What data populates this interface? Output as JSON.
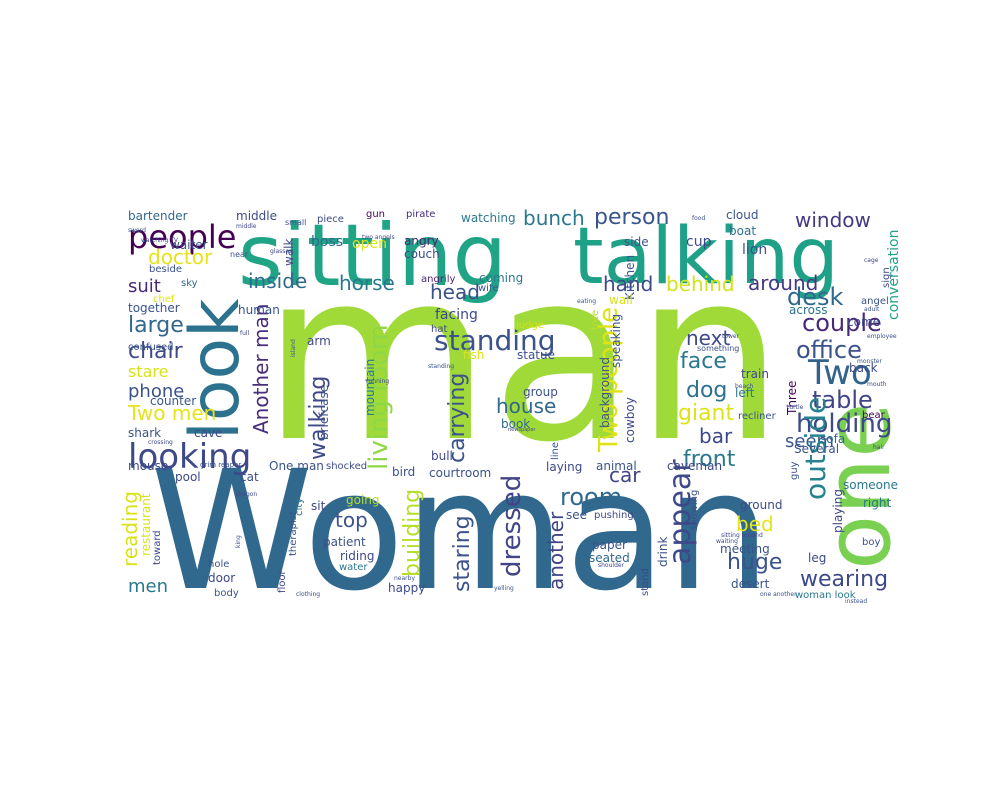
{
  "word_cloud": {
    "words": [
      {
        "text": "man",
        "color": "#a0da39"
      },
      {
        "text": "Woman",
        "color": "#31688e"
      },
      {
        "text": "sitting",
        "color": "#20a486"
      },
      {
        "text": "talking",
        "color": "#1fa187"
      },
      {
        "text": "one",
        "color": "#7ad151"
      },
      {
        "text": "look",
        "color": "#2c728e"
      },
      {
        "text": "looking",
        "color": "#3e4989"
      },
      {
        "text": "people",
        "color": "#440154"
      },
      {
        "text": "Two",
        "color": "#33638d"
      },
      {
        "text": "suit",
        "color": "#482878"
      },
      {
        "text": "inside",
        "color": "#31688e"
      },
      {
        "text": "horse",
        "color": "#2a788e"
      },
      {
        "text": "doctor",
        "color": "#e5e419"
      },
      {
        "text": "head",
        "color": "#3b528b"
      },
      {
        "text": "hand",
        "color": "#3e4989"
      },
      {
        "text": "behind",
        "color": "#d2e21b"
      },
      {
        "text": "around",
        "color": "#443983"
      },
      {
        "text": "person",
        "color": "#39568c"
      },
      {
        "text": "window",
        "color": "#443983"
      },
      {
        "text": "bunch",
        "color": "#2a788e"
      },
      {
        "text": "desk",
        "color": "#31688e"
      },
      {
        "text": "couple",
        "color": "#482878"
      },
      {
        "text": "office",
        "color": "#3b528b"
      },
      {
        "text": "large",
        "color": "#31688e"
      },
      {
        "text": "chair",
        "color": "#3e4989"
      },
      {
        "text": "stare",
        "color": "#d8e219"
      },
      {
        "text": "phone",
        "color": "#3b528b"
      },
      {
        "text": "Two men",
        "color": "#e5e419"
      },
      {
        "text": "standing",
        "color": "#3b528b"
      },
      {
        "text": "living room",
        "color": "#8fd744"
      },
      {
        "text": "Another man",
        "color": "#472d7b"
      },
      {
        "text": "walking",
        "color": "#3e4989"
      },
      {
        "text": "carrying",
        "color": "#3b528b"
      },
      {
        "text": "house",
        "color": "#31688e"
      },
      {
        "text": "Two people",
        "color": "#dde318"
      },
      {
        "text": "next",
        "color": "#3e4989"
      },
      {
        "text": "face",
        "color": "#2a788e"
      },
      {
        "text": "dog",
        "color": "#2c728e"
      },
      {
        "text": "giant",
        "color": "#dde318"
      },
      {
        "text": "bar",
        "color": "#3e4989"
      },
      {
        "text": "table",
        "color": "#414487"
      },
      {
        "text": "holding",
        "color": "#3e4989"
      },
      {
        "text": "seem",
        "color": "#39568c"
      },
      {
        "text": "front",
        "color": "#2a788e"
      },
      {
        "text": "room",
        "color": "#31688e"
      },
      {
        "text": "appear",
        "color": "#3e4989"
      },
      {
        "text": "outside",
        "color": "#26828e"
      },
      {
        "text": "car",
        "color": "#414487"
      },
      {
        "text": "bed",
        "color": "#e5e419"
      },
      {
        "text": "huge",
        "color": "#3b528b"
      },
      {
        "text": "wearing",
        "color": "#3e4989"
      },
      {
        "text": "top",
        "color": "#3b528b"
      },
      {
        "text": "dressed",
        "color": "#414487"
      },
      {
        "text": "staring",
        "color": "#3b528b"
      },
      {
        "text": "another",
        "color": "#414487"
      },
      {
        "text": "building",
        "color": "#b5de2b"
      },
      {
        "text": "reading",
        "color": "#d8e219"
      },
      {
        "text": "men",
        "color": "#2a788e"
      },
      {
        "text": "bartender",
        "color": "#31688e"
      },
      {
        "text": "middle",
        "color": "#3e4989"
      },
      {
        "text": "piece",
        "color": "#3e4989"
      },
      {
        "text": "gun",
        "color": "#440154"
      },
      {
        "text": "pirate",
        "color": "#472d7b"
      },
      {
        "text": "watching",
        "color": "#2a788e"
      },
      {
        "text": "cloud",
        "color": "#39568c"
      },
      {
        "text": "boat",
        "color": "#2c728e"
      },
      {
        "text": "cup",
        "color": "#3e4989"
      },
      {
        "text": "side",
        "color": "#3b528b"
      },
      {
        "text": "lion",
        "color": "#3b528b"
      },
      {
        "text": "conversation",
        "color": "#1fa187"
      },
      {
        "text": "waiter",
        "color": "#3b528b"
      },
      {
        "text": "boss",
        "color": "#31688e"
      },
      {
        "text": "open",
        "color": "#dde318"
      },
      {
        "text": "walk",
        "color": "#3e4989"
      },
      {
        "text": "angry",
        "color": "#482878"
      },
      {
        "text": "couch",
        "color": "#3e4989"
      },
      {
        "text": "Kitchen",
        "color": "#39568c"
      },
      {
        "text": "beside",
        "color": "#3b528b"
      },
      {
        "text": "chef",
        "color": "#dde318"
      },
      {
        "text": "sky",
        "color": "#31688e"
      },
      {
        "text": "angrily",
        "color": "#482878"
      },
      {
        "text": "wife",
        "color": "#39568c"
      },
      {
        "text": "coming",
        "color": "#2a788e"
      },
      {
        "text": "together",
        "color": "#3b528b"
      },
      {
        "text": "human",
        "color": "#39568c"
      },
      {
        "text": "come",
        "color": "#3e4989"
      },
      {
        "text": "angel",
        "color": "#3b528b"
      },
      {
        "text": "across",
        "color": "#2c728e"
      },
      {
        "text": "wall",
        "color": "#d8e219"
      },
      {
        "text": "facing",
        "color": "#3e4989"
      },
      {
        "text": "hat",
        "color": "#3e4989"
      },
      {
        "text": "judge",
        "color": "#d2e21b"
      },
      {
        "text": "tree",
        "color": "#b5de2b"
      },
      {
        "text": "arm",
        "color": "#3e4989"
      },
      {
        "text": "fish",
        "color": "#dde318"
      },
      {
        "text": "statue",
        "color": "#3b528b"
      },
      {
        "text": "speaking",
        "color": "#39568c"
      },
      {
        "text": "train",
        "color": "#3e4989"
      },
      {
        "text": "left",
        "color": "#2a788e"
      },
      {
        "text": "back",
        "color": "#3e4989"
      },
      {
        "text": "Three",
        "color": "#440154"
      },
      {
        "text": "background",
        "color": "#3b528b"
      },
      {
        "text": "cowboy",
        "color": "#3e4989"
      },
      {
        "text": "group",
        "color": "#3b528b"
      },
      {
        "text": "book",
        "color": "#31688e"
      },
      {
        "text": "mountain",
        "color": "#2a788e"
      },
      {
        "text": "briefcase",
        "color": "#3b528b"
      },
      {
        "text": "counter",
        "color": "#39568c"
      },
      {
        "text": "shark",
        "color": "#3b528b"
      },
      {
        "text": "cave",
        "color": "#3e4989"
      },
      {
        "text": "recliner",
        "color": "#3b528b"
      },
      {
        "text": "sofa",
        "color": "#31688e"
      },
      {
        "text": "bear",
        "color": "#440154"
      },
      {
        "text": "mouse",
        "color": "#3e4989"
      },
      {
        "text": "One man",
        "color": "#3b528b"
      },
      {
        "text": "shocked",
        "color": "#3e4989"
      },
      {
        "text": "bird",
        "color": "#3b528b"
      },
      {
        "text": "bull",
        "color": "#3e4989"
      },
      {
        "text": "courtroom",
        "color": "#3b528b"
      },
      {
        "text": "laying",
        "color": "#3e4989"
      },
      {
        "text": "animal",
        "color": "#3b528b"
      },
      {
        "text": "caveman",
        "color": "#3e4989"
      },
      {
        "text": "Several",
        "color": "#3b528b"
      },
      {
        "text": "someone",
        "color": "#2a788e"
      },
      {
        "text": "cat",
        "color": "#3e4989"
      },
      {
        "text": "pool",
        "color": "#3e4989"
      },
      {
        "text": "restaurant",
        "color": "#d8e219"
      },
      {
        "text": "going",
        "color": "#b5de2b"
      },
      {
        "text": "sit",
        "color": "#3e4989"
      },
      {
        "text": "patient",
        "color": "#3b528b"
      },
      {
        "text": "riding",
        "color": "#3e4989"
      },
      {
        "text": "water",
        "color": "#2a788e"
      },
      {
        "text": "see",
        "color": "#3b528b"
      },
      {
        "text": "pushing",
        "color": "#3e4989"
      },
      {
        "text": "paper",
        "color": "#3b528b"
      },
      {
        "text": "seated",
        "color": "#31688e"
      },
      {
        "text": "drink",
        "color": "#3b528b"
      },
      {
        "text": "stand",
        "color": "#3e4989"
      },
      {
        "text": "showing",
        "color": "#3b528b"
      },
      {
        "text": "ground",
        "color": "#3e4989"
      },
      {
        "text": "meeting",
        "color": "#3b528b"
      },
      {
        "text": "playing",
        "color": "#3e4989"
      },
      {
        "text": "right",
        "color": "#2a788e"
      },
      {
        "text": "boy",
        "color": "#3b528b"
      },
      {
        "text": "leg",
        "color": "#3e4989"
      },
      {
        "text": "desert",
        "color": "#3b528b"
      },
      {
        "text": "woman look",
        "color": "#2a788e"
      },
      {
        "text": "toward",
        "color": "#3e4989"
      },
      {
        "text": "hole",
        "color": "#3b528b"
      },
      {
        "text": "door",
        "color": "#3e4989"
      },
      {
        "text": "body",
        "color": "#3b528b"
      },
      {
        "text": "floor",
        "color": "#3e4989"
      },
      {
        "text": "therapist",
        "color": "#3b528b"
      },
      {
        "text": "city",
        "color": "#2a788e"
      },
      {
        "text": "happy",
        "color": "#3e4989"
      },
      {
        "text": "guy",
        "color": "#3b528b"
      },
      {
        "text": "sign",
        "color": "#3e4989"
      },
      {
        "text": "grim reaper",
        "color": "#3b528b"
      },
      {
        "text": "dragon",
        "color": "#3e4989"
      },
      {
        "text": "line",
        "color": "#3b528b"
      },
      {
        "text": "glasses",
        "color": "#3e4989"
      },
      {
        "text": "sword",
        "color": "#3b528b"
      },
      {
        "text": "watching TV",
        "color": "#3e4989"
      },
      {
        "text": "near",
        "color": "#3b528b"
      },
      {
        "text": "two angels",
        "color": "#3e4989"
      },
      {
        "text": "something",
        "color": "#3b528b"
      },
      {
        "text": "sitting around",
        "color": "#3e4989"
      },
      {
        "text": "one another",
        "color": "#3b528b"
      },
      {
        "text": "newspaper",
        "color": "#3e4989"
      },
      {
        "text": "yelling",
        "color": "#3b528b"
      },
      {
        "text": "shoulder",
        "color": "#3e4989"
      },
      {
        "text": "nearby",
        "color": "#3b528b"
      },
      {
        "text": "clothing",
        "color": "#3e4989"
      },
      {
        "text": "employee",
        "color": "#3b528b"
      },
      {
        "text": "mouth",
        "color": "#3e4989"
      },
      {
        "text": "monster",
        "color": "#3b528b"
      },
      {
        "text": "turtle",
        "color": "#3e4989"
      },
      {
        "text": "beach",
        "color": "#3b528b"
      },
      {
        "text": "hair",
        "color": "#3e4989"
      },
      {
        "text": "king",
        "color": "#3b528b"
      },
      {
        "text": "running",
        "color": "#3e4989"
      },
      {
        "text": "eating",
        "color": "#3b528b"
      },
      {
        "text": "tower",
        "color": "#3e4989"
      },
      {
        "text": "island",
        "color": "#3b528b"
      },
      {
        "text": "cage",
        "color": "#3e4989"
      },
      {
        "text": "food",
        "color": "#3b528b"
      },
      {
        "text": "small",
        "color": "#3e4989"
      },
      {
        "text": "adult",
        "color": "#3b528b"
      },
      {
        "text": "waiting",
        "color": "#3e4989"
      },
      {
        "text": "instead",
        "color": "#3b528b"
      },
      {
        "text": "full",
        "color": "#3e4989"
      },
      {
        "text": "confused",
        "color": "#3b528b"
      },
      {
        "text": "crossing",
        "color": "#3e4989"
      },
      {
        "text": "standing",
        "color": "#3b528b"
      },
      {
        "text": "middle",
        "color": "#3e4989"
      }
    ]
  }
}
